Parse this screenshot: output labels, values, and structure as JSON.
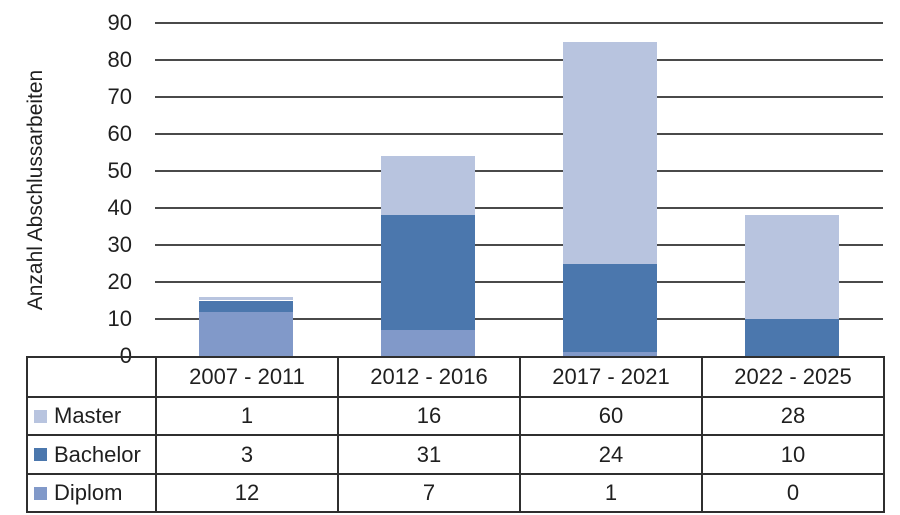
{
  "chart_data": {
    "type": "bar",
    "stacked": true,
    "title": "",
    "ylabel": "Anzahl Abschlussarbeiten",
    "xlabel": "",
    "ylim": [
      0,
      90
    ],
    "ytick_step": 10,
    "yticks": [
      0,
      10,
      20,
      30,
      40,
      50,
      60,
      70,
      80,
      90
    ],
    "grid": true,
    "legend_position": "table-left-column",
    "categories": [
      "2007 - 2011",
      "2012 - 2016",
      "2017 - 2021",
      "2022 - 2025"
    ],
    "series": [
      {
        "name": "Master",
        "color": "#b8c4df",
        "values": [
          1,
          16,
          60,
          28
        ]
      },
      {
        "name": "Bachelor",
        "color": "#4b77ad",
        "values": [
          3,
          31,
          24,
          10
        ]
      },
      {
        "name": "Diplom",
        "color": "#8199c9",
        "values": [
          12,
          7,
          1,
          0
        ]
      }
    ],
    "stack_order_bottom_to_top": [
      "Diplom",
      "Bachelor",
      "Master"
    ],
    "totals": [
      16,
      54,
      85,
      38
    ]
  },
  "colors": {
    "gridline": "#4a4a4a",
    "table_border": "#2f2f2f",
    "text": "#1f1f1f"
  }
}
